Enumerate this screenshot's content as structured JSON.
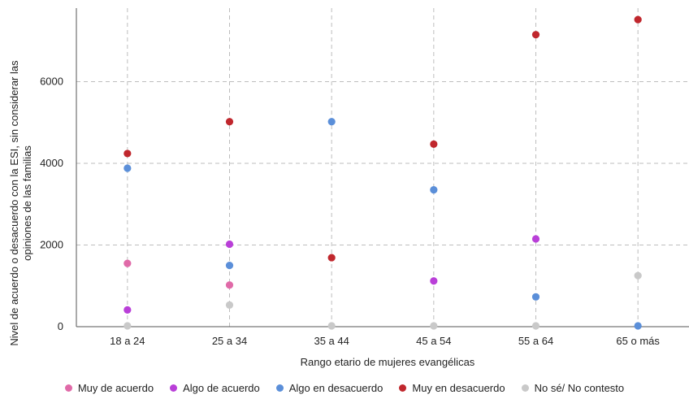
{
  "chart_data": {
    "type": "scatter",
    "title": "",
    "xlabel": "Rango etario de mujeres evangélicas",
    "ylabel_line1": "Nivel de acuerdo o desacuerdo con la ESI, sin considerar las",
    "ylabel_line2": "opiniones de las familias",
    "categories": [
      "18 a 24",
      "25 a 34",
      "35 a 44",
      "45 a 54",
      "55 a 64",
      "65 o más"
    ],
    "ylim": [
      0,
      7800
    ],
    "yticks": [
      0,
      2000,
      4000,
      6000
    ],
    "grid": true,
    "legend_position": "bottom",
    "series": [
      {
        "name": "Muy de acuerdo",
        "color": "#e06aa8",
        "values": [
          1550,
          1020,
          null,
          null,
          null,
          null
        ]
      },
      {
        "name": "Algo de acuerdo",
        "color": "#b93fd8",
        "values": [
          410,
          2020,
          null,
          1120,
          2150,
          null
        ]
      },
      {
        "name": "Algo en desacuerdo",
        "color": "#5b8fd9",
        "values": [
          3880,
          1500,
          5020,
          3350,
          730,
          20
        ]
      },
      {
        "name": "Muy en desacuerdo",
        "color": "#c0272d",
        "values": [
          4240,
          5020,
          1690,
          4470,
          7150,
          7520
        ]
      },
      {
        "name": "No sé/ No contesto",
        "color": "#c9c9c9",
        "values": [
          20,
          530,
          20,
          20,
          20,
          1250
        ]
      }
    ]
  }
}
